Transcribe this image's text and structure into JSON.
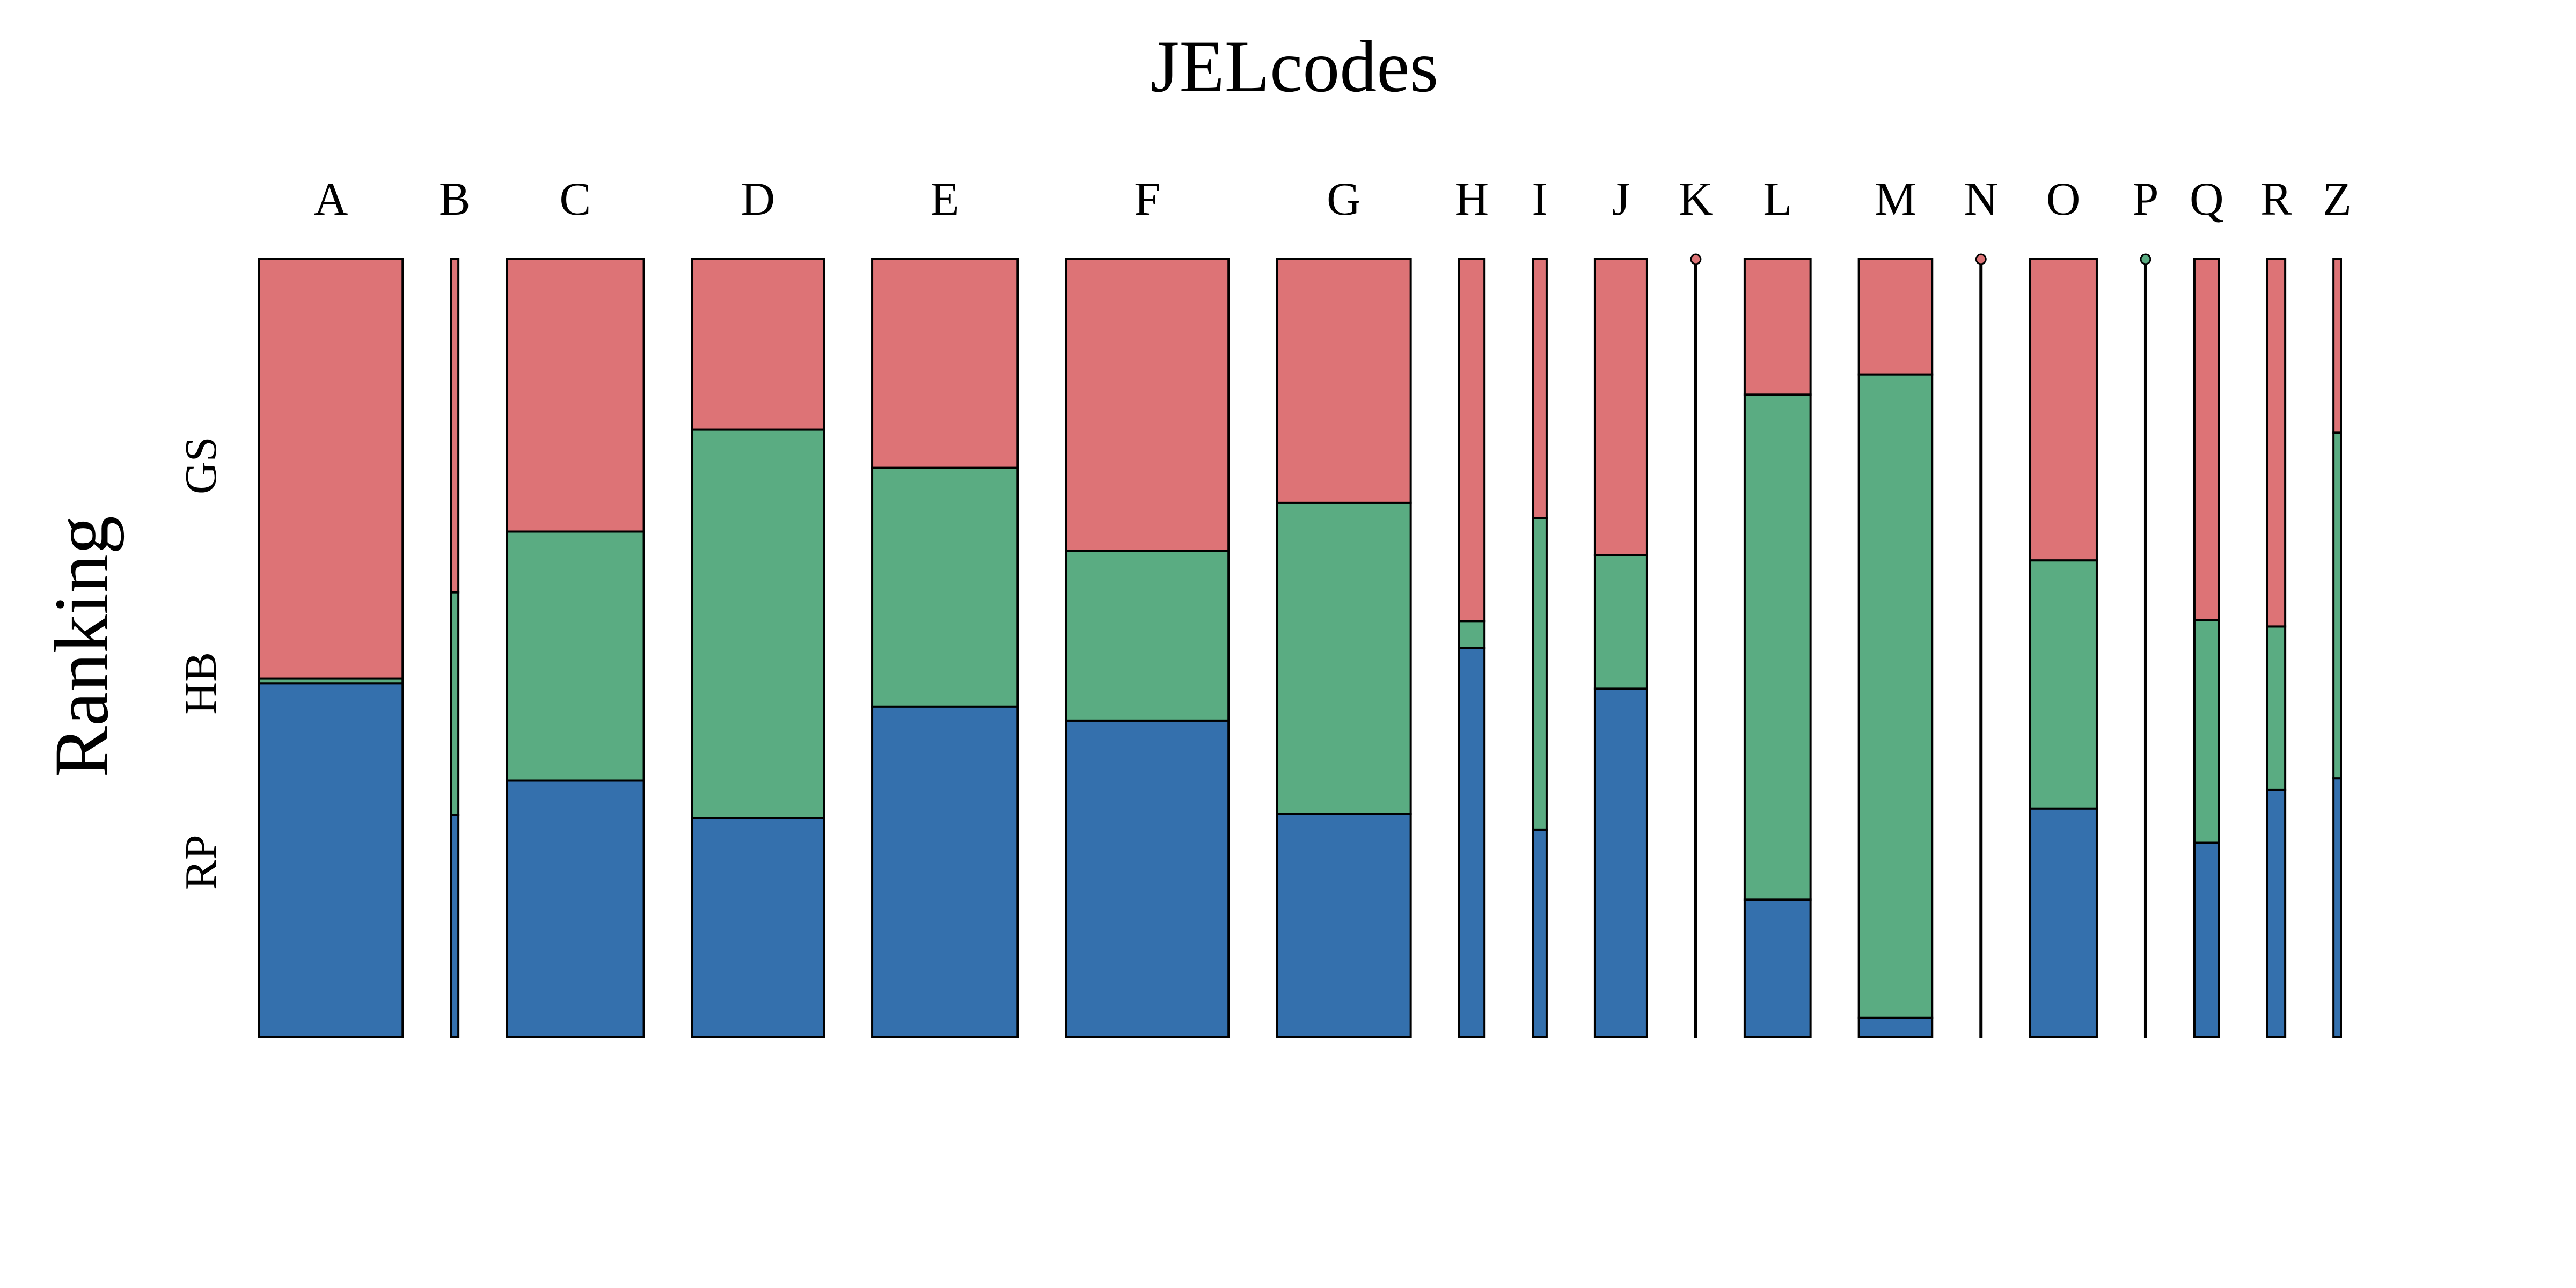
{
  "chart_data": {
    "type": "mosaic",
    "title": "JELcodes",
    "ylabel": "Ranking",
    "levels": [
      "RP",
      "HB",
      "GS"
    ],
    "level_colors": {
      "RP": "#3470AD",
      "HB": "#5AAC82",
      "GS": "#DD7376"
    },
    "categories": [
      {
        "label": "A",
        "count": 135,
        "RP": 0.455,
        "HB": 0.006,
        "GS": 0.539
      },
      {
        "label": "B",
        "count": 7,
        "RP": 0.286,
        "HB": 0.286,
        "GS": 0.428
      },
      {
        "label": "C",
        "count": 129,
        "RP": 0.33,
        "HB": 0.32,
        "GS": 0.35
      },
      {
        "label": "D",
        "count": 124,
        "RP": 0.282,
        "HB": 0.499,
        "GS": 0.219
      },
      {
        "label": "E",
        "count": 137,
        "RP": 0.425,
        "HB": 0.307,
        "GS": 0.268
      },
      {
        "label": "F",
        "count": 153,
        "RP": 0.407,
        "HB": 0.218,
        "GS": 0.375
      },
      {
        "label": "G",
        "count": 126,
        "RP": 0.287,
        "HB": 0.4,
        "GS": 0.313
      },
      {
        "label": "H",
        "count": 24,
        "RP": 0.5,
        "HB": 0.035,
        "GS": 0.465
      },
      {
        "label": "I",
        "count": 13,
        "RP": 0.267,
        "HB": 0.4,
        "GS": 0.333
      },
      {
        "label": "J",
        "count": 49,
        "RP": 0.448,
        "HB": 0.172,
        "GS": 0.38
      },
      {
        "label": "K",
        "count": 1,
        "RP": 0.0,
        "HB": 0.0,
        "GS": 1.0
      },
      {
        "label": "L",
        "count": 62,
        "RP": 0.177,
        "HB": 0.649,
        "GS": 0.174
      },
      {
        "label": "M",
        "count": 69,
        "RP": 0.025,
        "HB": 0.827,
        "GS": 0.148
      },
      {
        "label": "N",
        "count": 1,
        "RP": 0.0,
        "HB": 0.0,
        "GS": 1.0
      },
      {
        "label": "O",
        "count": 63,
        "RP": 0.294,
        "HB": 0.319,
        "GS": 0.387
      },
      {
        "label": "P",
        "count": 1,
        "RP": 0.0,
        "HB": 1.0,
        "GS": 0.0
      },
      {
        "label": "Q",
        "count": 23,
        "RP": 0.25,
        "HB": 0.286,
        "GS": 0.464
      },
      {
        "label": "R",
        "count": 17,
        "RP": 0.318,
        "HB": 0.21,
        "GS": 0.472
      },
      {
        "label": "Z",
        "count": 7,
        "RP": 0.333,
        "HB": 0.444,
        "GS": 0.223
      }
    ]
  }
}
